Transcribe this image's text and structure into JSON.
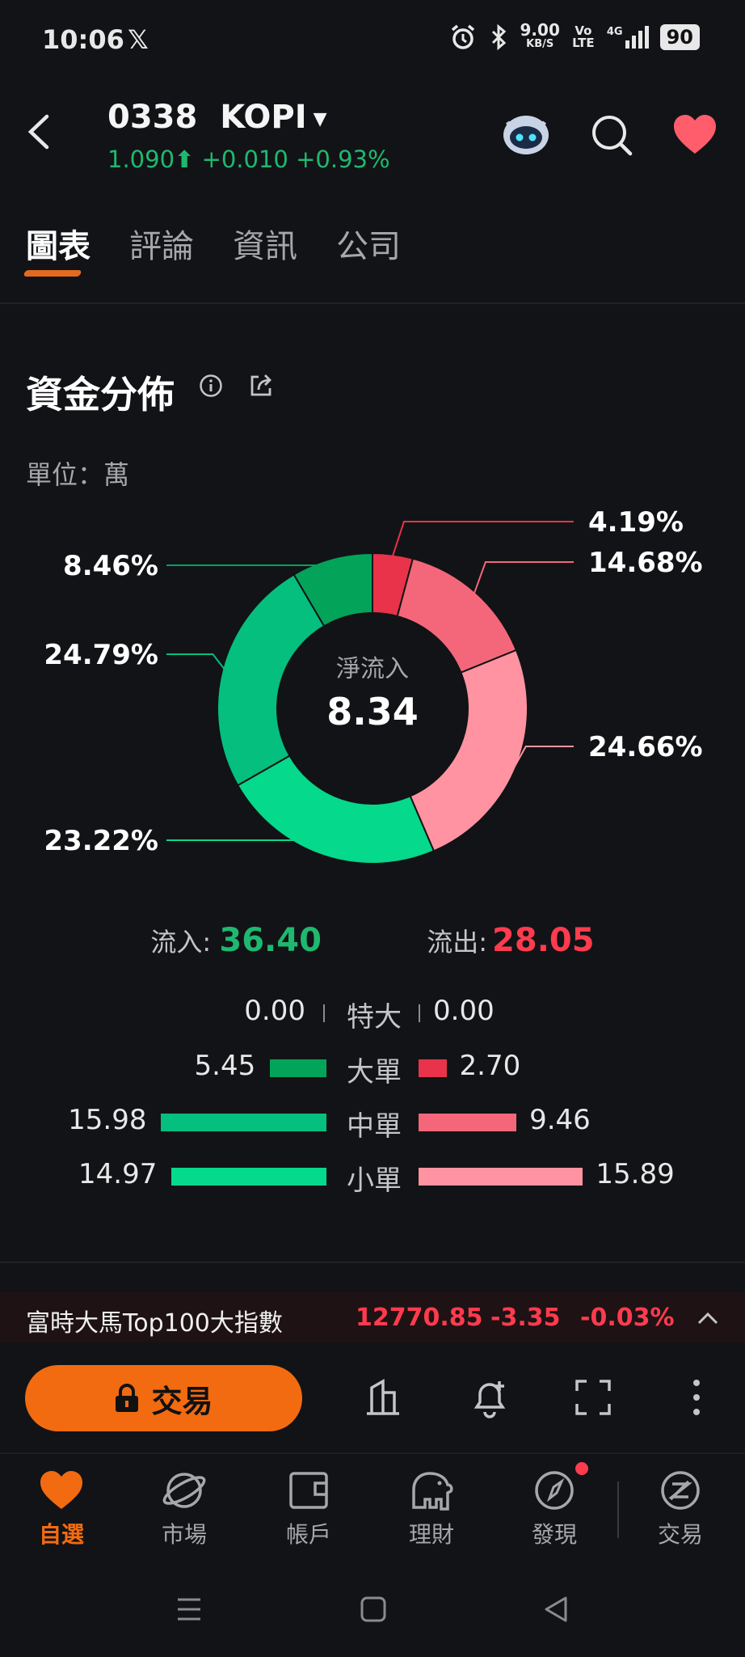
{
  "status_bar": {
    "time": "10:06",
    "x_logo": "𝕏",
    "net_speed": "9.00",
    "net_unit": "KB/S",
    "volte": "Vo LTE",
    "network": "4G",
    "battery": "90"
  },
  "header": {
    "code": "0338",
    "name": "KOPI",
    "price": "1.090",
    "change": "+0.010",
    "change_pct": "+0.93%"
  },
  "tabs": [
    {
      "label": "圖表",
      "active": true
    },
    {
      "label": "評論",
      "active": false
    },
    {
      "label": "資訊",
      "active": false
    },
    {
      "label": "公司",
      "active": false
    }
  ],
  "section": {
    "title": "資金分佈",
    "unit": "單位：萬"
  },
  "chart_data": {
    "type": "pie",
    "center_label": "淨流入",
    "center_value": "8.34",
    "slices": [
      {
        "label": "4.19%",
        "value": 4.19,
        "color": "#e8334a",
        "side": "outflow",
        "size": "大單"
      },
      {
        "label": "14.68%",
        "value": 14.68,
        "color": "#f4677a",
        "side": "outflow",
        "size": "中單"
      },
      {
        "label": "24.66%",
        "value": 24.66,
        "color": "#ff93a1",
        "side": "outflow",
        "size": "小單"
      },
      {
        "label": "23.22%",
        "value": 23.22,
        "color": "#05d98b",
        "side": "inflow",
        "size": "小單"
      },
      {
        "label": "24.79%",
        "value": 24.79,
        "color": "#04bf7e",
        "side": "inflow",
        "size": "中單"
      },
      {
        "label": "8.46%",
        "value": 8.46,
        "color": "#04a35a",
        "side": "inflow",
        "size": "大單"
      }
    ]
  },
  "flow": {
    "in_label": "流入:",
    "in_value": "36.40",
    "out_label": "流出:",
    "out_value": "28.05"
  },
  "breakdown": [
    {
      "category": "特大",
      "inflow": "0.00",
      "outflow": "0.00",
      "in_num": 0.0,
      "out_num": 0.0,
      "in_color": "#04a35a",
      "out_color": "#e8334a"
    },
    {
      "category": "大單",
      "inflow": "5.45",
      "outflow": "2.70",
      "in_num": 5.45,
      "out_num": 2.7,
      "in_color": "#04a35a",
      "out_color": "#e8334a"
    },
    {
      "category": "中單",
      "inflow": "15.98",
      "outflow": "9.46",
      "in_num": 15.98,
      "out_num": 9.46,
      "in_color": "#04bf7e",
      "out_color": "#f4677a"
    },
    {
      "category": "小單",
      "inflow": "14.97",
      "outflow": "15.89",
      "in_num": 14.97,
      "out_num": 15.89,
      "in_color": "#05d98b",
      "out_color": "#ff93a1"
    }
  ],
  "index_bar": {
    "name": "富時大馬Top100大指數",
    "value": "12770.85",
    "change": "-3.35",
    "change_pct": "-0.03%"
  },
  "actions": {
    "trade_label": "交易"
  },
  "bottom_nav": [
    {
      "label": "自選",
      "icon": "heart-icon",
      "active": true
    },
    {
      "label": "市場",
      "icon": "planet-icon",
      "active": false
    },
    {
      "label": "帳戶",
      "icon": "wallet-icon",
      "active": false
    },
    {
      "label": "理財",
      "icon": "elephant-icon",
      "active": false
    },
    {
      "label": "發現",
      "icon": "compass-icon",
      "active": false
    },
    {
      "label": "交易",
      "icon": "trade-icon",
      "active": false
    }
  ]
}
